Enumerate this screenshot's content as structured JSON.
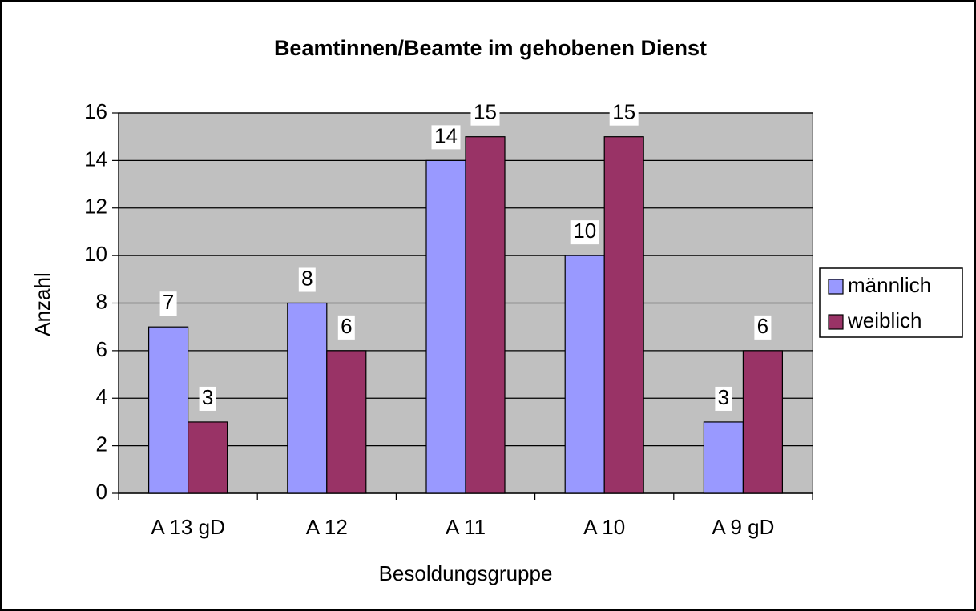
{
  "chart_data": {
    "type": "bar",
    "title": "Beamtinnen/Beamte im gehobenen Dienst",
    "x_label": "Besoldungsgruppe",
    "y_label": "Anzahl",
    "categories": [
      "A 13 gD",
      "A 12",
      "A 11",
      "A 10",
      "A 9 gD"
    ],
    "series": [
      {
        "name": "männlich",
        "color": "#9999ff",
        "values": [
          7,
          8,
          14,
          10,
          3
        ]
      },
      {
        "name": "weiblich",
        "color": "#993366",
        "values": [
          3,
          6,
          15,
          15,
          6
        ]
      }
    ],
    "ylim": [
      0,
      16
    ],
    "yticks": [
      0,
      2,
      4,
      6,
      8,
      10,
      12,
      14,
      16
    ],
    "grid": true,
    "legend": "right",
    "plot_background": "#c0c0c0"
  }
}
